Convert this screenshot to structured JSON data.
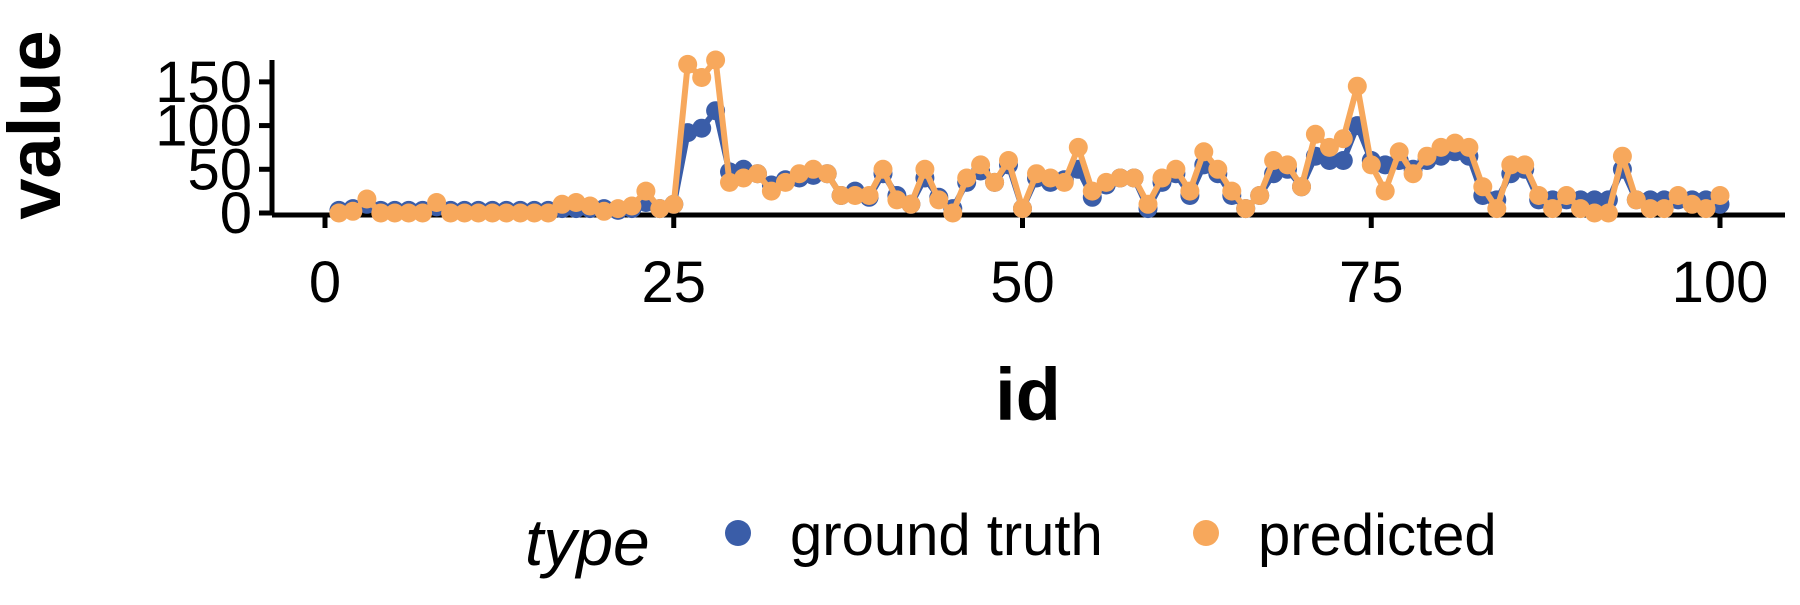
{
  "chart_data": {
    "type": "line",
    "xlabel": "id",
    "ylabel": "value",
    "xlim": [
      0,
      100
    ],
    "ylim": [
      0,
      175
    ],
    "x_ticks": [
      0,
      25,
      50,
      75,
      100
    ],
    "y_ticks": [
      0,
      50,
      100,
      150
    ],
    "grid": false,
    "legend": {
      "title": "type",
      "position": "bottom",
      "entries": [
        "ground truth",
        "predicted"
      ]
    },
    "x": [
      1,
      2,
      3,
      4,
      5,
      6,
      7,
      8,
      9,
      10,
      11,
      12,
      13,
      14,
      15,
      16,
      17,
      18,
      19,
      20,
      21,
      22,
      23,
      24,
      25,
      26,
      27,
      28,
      29,
      30,
      31,
      32,
      33,
      34,
      35,
      36,
      37,
      38,
      39,
      40,
      41,
      42,
      43,
      44,
      45,
      46,
      47,
      48,
      49,
      50,
      51,
      52,
      53,
      54,
      55,
      56,
      57,
      58,
      59,
      60,
      61,
      62,
      63,
      64,
      65,
      66,
      67,
      68,
      69,
      70,
      71,
      72,
      73,
      74,
      75,
      76,
      77,
      78,
      79,
      80,
      81,
      82,
      83,
      84,
      85,
      86,
      87,
      88,
      89,
      90,
      91,
      92,
      93,
      94,
      95,
      96,
      97,
      98,
      99,
      100
    ],
    "series": [
      {
        "name": "ground truth",
        "color": "#3a5da8",
        "values": [
          3,
          5,
          10,
          3,
          3,
          3,
          3,
          7,
          3,
          3,
          3,
          3,
          3,
          3,
          3,
          3,
          5,
          5,
          5,
          5,
          3,
          5,
          12,
          5,
          10,
          92,
          97,
          117,
          47,
          50,
          45,
          32,
          38,
          40,
          43,
          45,
          20,
          25,
          18,
          45,
          20,
          10,
          40,
          18,
          5,
          35,
          48,
          35,
          55,
          5,
          40,
          35,
          38,
          50,
          18,
          32,
          40,
          40,
          5,
          35,
          45,
          20,
          55,
          45,
          20,
          5,
          20,
          45,
          50,
          30,
          65,
          60,
          60,
          100,
          60,
          55,
          60,
          50,
          60,
          65,
          70,
          65,
          20,
          15,
          45,
          50,
          15,
          15,
          15,
          15,
          15,
          15,
          50,
          15,
          15,
          15,
          15,
          15,
          15,
          10
        ]
      },
      {
        "name": "predicted",
        "color": "#f7a85c",
        "values": [
          0,
          2,
          16,
          0,
          0,
          0,
          0,
          12,
          0,
          0,
          0,
          0,
          0,
          0,
          0,
          0,
          10,
          12,
          8,
          2,
          5,
          8,
          25,
          5,
          10,
          170,
          155,
          175,
          35,
          40,
          45,
          25,
          35,
          45,
          50,
          45,
          20,
          20,
          20,
          50,
          15,
          10,
          50,
          15,
          0,
          40,
          55,
          35,
          60,
          5,
          45,
          40,
          35,
          75,
          25,
          35,
          40,
          40,
          10,
          40,
          50,
          25,
          70,
          50,
          25,
          5,
          20,
          60,
          55,
          30,
          90,
          75,
          85,
          145,
          55,
          25,
          70,
          45,
          65,
          75,
          80,
          75,
          30,
          5,
          55,
          55,
          20,
          5,
          20,
          5,
          0,
          0,
          65,
          15,
          5,
          5,
          20,
          10,
          5,
          20
        ]
      }
    ]
  }
}
